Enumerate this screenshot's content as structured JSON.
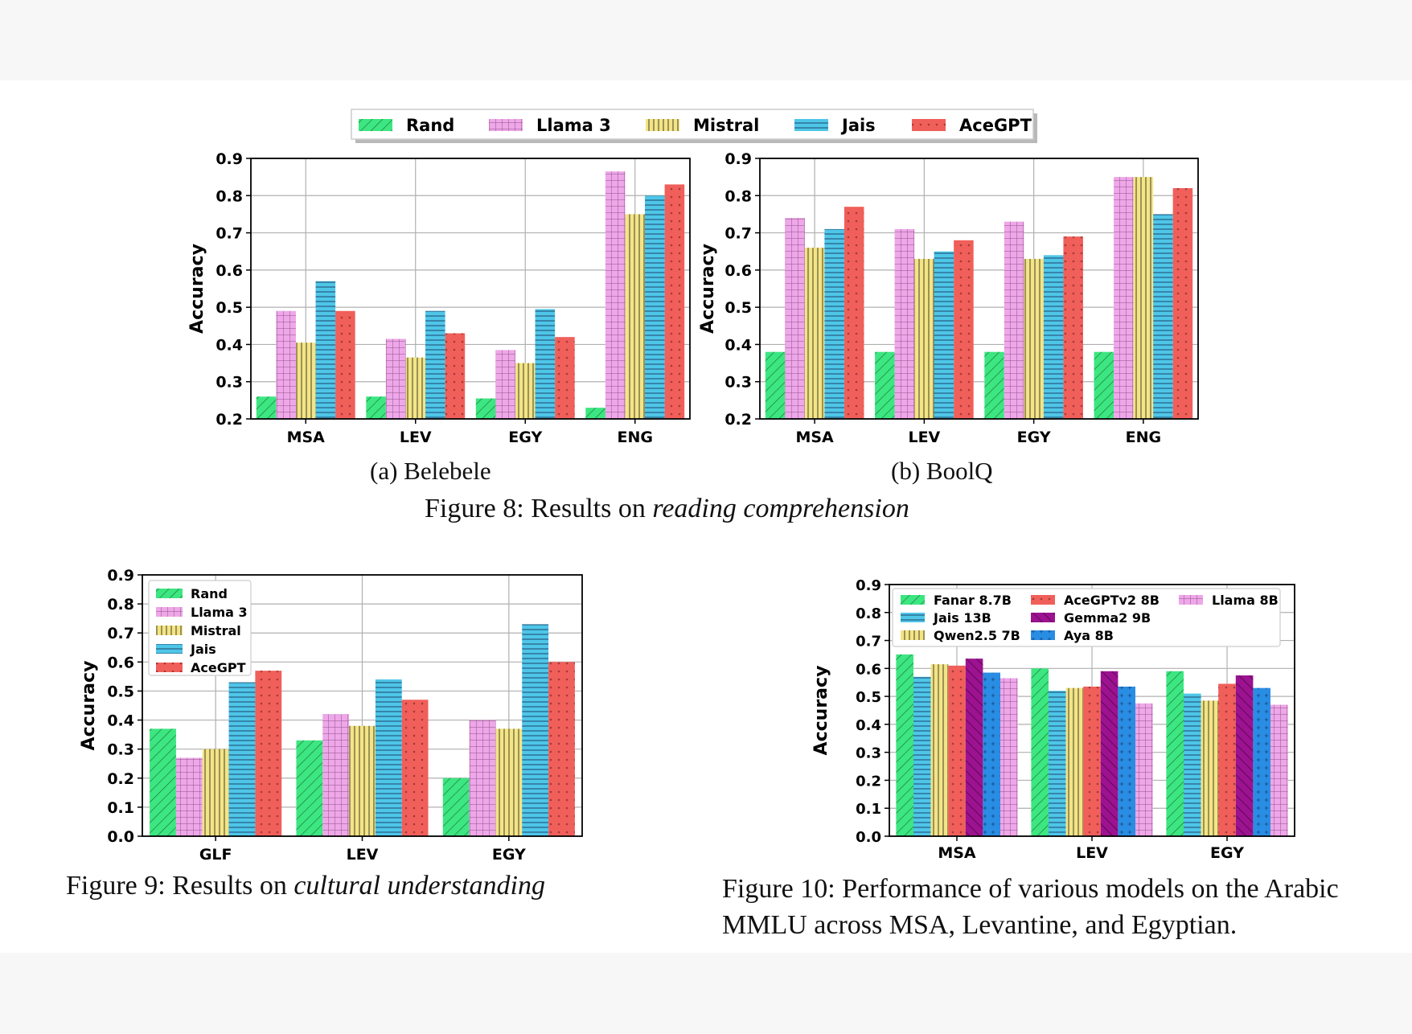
{
  "colors": {
    "Rand": "#3ce680",
    "Llama 3": "#eea7e8",
    "Mistral": "#f3e486",
    "Jais": "#4ec6e8",
    "AceGPT": "#f05f5a",
    "Fanar 8.7B": "#3ce680",
    "Jais 13B": "#4ec6e8",
    "Qwen2.5 7B": "#f3e486",
    "AceGPTv2 8B": "#f05f5a",
    "Gemma2 9B": "#9c1290",
    "Aya 8B": "#2a8de4",
    "Llama 8B": "#eea7e8"
  },
  "top_legend": [
    "Rand",
    "Llama 3",
    "Mistral",
    "Jais",
    "AceGPT"
  ],
  "captions": {
    "fig8a": "(a) Belebele",
    "fig8b": "(b) BoolQ",
    "fig8_prefix": "Figure 8: Results on ",
    "fig8_italic": "reading comprehension",
    "fig9_prefix": "Figure 9: Results on ",
    "fig9_italic": "cultural understanding",
    "fig10_line1": "Figure 10: Performance of various models on the Arabic",
    "fig10_line2": "MMLU across MSA, Levantine, and Egyptian."
  },
  "chart_data": [
    {
      "id": "belebele",
      "type": "bar",
      "title": "",
      "ylabel": "Accuracy",
      "xlabel": "",
      "ylim": [
        0.2,
        0.9
      ],
      "yticks": [
        0.2,
        0.3,
        0.4,
        0.5,
        0.6,
        0.7,
        0.8,
        0.9
      ],
      "grid": true,
      "categories": [
        "MSA",
        "LEV",
        "EGY",
        "ENG"
      ],
      "series": [
        {
          "name": "Rand",
          "values": [
            0.26,
            0.26,
            0.255,
            0.23
          ]
        },
        {
          "name": "Llama 3",
          "values": [
            0.49,
            0.415,
            0.385,
            0.865
          ]
        },
        {
          "name": "Mistral",
          "values": [
            0.405,
            0.365,
            0.35,
            0.75
          ]
        },
        {
          "name": "Jais",
          "values": [
            0.57,
            0.49,
            0.495,
            0.8
          ]
        },
        {
          "name": "AceGPT",
          "values": [
            0.49,
            0.43,
            0.42,
            0.83
          ]
        }
      ]
    },
    {
      "id": "boolq",
      "type": "bar",
      "title": "",
      "ylabel": "Accuracy",
      "xlabel": "",
      "ylim": [
        0.2,
        0.9
      ],
      "yticks": [
        0.2,
        0.3,
        0.4,
        0.5,
        0.6,
        0.7,
        0.8,
        0.9
      ],
      "grid": true,
      "categories": [
        "MSA",
        "LEV",
        "EGY",
        "ENG"
      ],
      "series": [
        {
          "name": "Rand",
          "values": [
            0.38,
            0.38,
            0.38,
            0.38
          ]
        },
        {
          "name": "Llama 3",
          "values": [
            0.74,
            0.71,
            0.73,
            0.85
          ]
        },
        {
          "name": "Mistral",
          "values": [
            0.66,
            0.63,
            0.63,
            0.85
          ]
        },
        {
          "name": "Jais",
          "values": [
            0.71,
            0.65,
            0.64,
            0.75
          ]
        },
        {
          "name": "AceGPT",
          "values": [
            0.77,
            0.68,
            0.69,
            0.82
          ]
        }
      ]
    },
    {
      "id": "cultural",
      "type": "bar",
      "title": "",
      "ylabel": "Accuracy",
      "xlabel": "",
      "ylim": [
        0.0,
        0.9
      ],
      "yticks": [
        0.0,
        0.1,
        0.2,
        0.3,
        0.4,
        0.5,
        0.6,
        0.7,
        0.8,
        0.9
      ],
      "grid": true,
      "legend": "top-left",
      "categories": [
        "GLF",
        "LEV",
        "EGY"
      ],
      "series": [
        {
          "name": "Rand",
          "values": [
            0.37,
            0.33,
            0.2
          ]
        },
        {
          "name": "Llama 3",
          "values": [
            0.27,
            0.42,
            0.4
          ]
        },
        {
          "name": "Mistral",
          "values": [
            0.3,
            0.38,
            0.37
          ]
        },
        {
          "name": "Jais",
          "values": [
            0.53,
            0.54,
            0.73
          ]
        },
        {
          "name": "AceGPT",
          "values": [
            0.57,
            0.47,
            0.6
          ]
        }
      ]
    },
    {
      "id": "mmlu",
      "type": "bar",
      "title": "",
      "ylabel": "Accuracy",
      "xlabel": "",
      "ylim": [
        0.0,
        0.9
      ],
      "yticks": [
        0.0,
        0.1,
        0.2,
        0.3,
        0.4,
        0.5,
        0.6,
        0.7,
        0.8,
        0.9
      ],
      "grid": true,
      "legend": "top",
      "categories": [
        "MSA",
        "LEV",
        "EGY"
      ],
      "series": [
        {
          "name": "Fanar 8.7B",
          "values": [
            0.65,
            0.6,
            0.59
          ]
        },
        {
          "name": "Jais 13B",
          "values": [
            0.57,
            0.52,
            0.51
          ]
        },
        {
          "name": "Qwen2.5 7B",
          "values": [
            0.615,
            0.53,
            0.485
          ]
        },
        {
          "name": "AceGPTv2 8B",
          "values": [
            0.61,
            0.535,
            0.545
          ]
        },
        {
          "name": "Gemma2 9B",
          "values": [
            0.635,
            0.59,
            0.575
          ]
        },
        {
          "name": "Aya 8B",
          "values": [
            0.585,
            0.535,
            0.53
          ]
        },
        {
          "name": "Llama 8B",
          "values": [
            0.565,
            0.475,
            0.47
          ]
        }
      ]
    }
  ]
}
